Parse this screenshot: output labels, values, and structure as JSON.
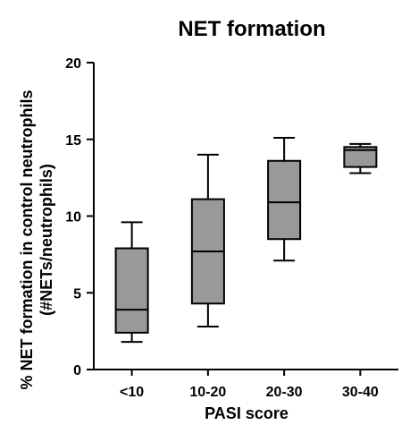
{
  "chart_data": {
    "type": "box",
    "title": "NET formation",
    "xlabel": "PASI score",
    "ylabel_line1": "% NET formation in control neutrophils",
    "ylabel_line2": "(#NETs/neutrophils)",
    "ylim": [
      0,
      20
    ],
    "yticks": [
      "0",
      "5",
      "10",
      "15",
      "20"
    ],
    "categories": [
      "<10",
      "10-20",
      "20-30",
      "30-40"
    ],
    "boxes": [
      {
        "category": "<10",
        "min": 1.8,
        "q1": 2.4,
        "median": 3.9,
        "q3": 7.9,
        "max": 9.6
      },
      {
        "category": "10-20",
        "min": 2.8,
        "q1": 4.3,
        "median": 7.7,
        "q3": 11.1,
        "max": 14.0
      },
      {
        "category": "20-30",
        "min": 7.1,
        "q1": 8.5,
        "median": 10.9,
        "q3": 13.6,
        "max": 15.1
      },
      {
        "category": "30-40",
        "min": 12.8,
        "q1": 13.2,
        "median": 14.3,
        "q3": 14.5,
        "max": 14.7
      }
    ],
    "box_color": "#999999",
    "grid": false,
    "legend": "none"
  }
}
